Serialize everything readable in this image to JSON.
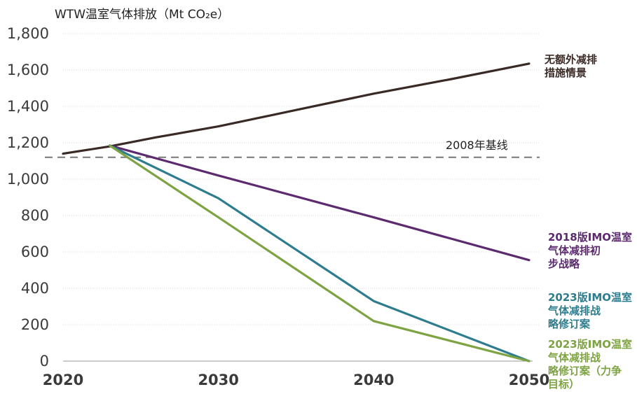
{
  "chart_data": {
    "type": "line",
    "ylabel": "WTW温室气体排放（Mt CO₂e）",
    "xlim": [
      2020,
      2050
    ],
    "ylim": [
      0,
      1800
    ],
    "x_ticks": [
      2020,
      2030,
      2040,
      2050
    ],
    "y_ticks": [
      0,
      200,
      400,
      600,
      800,
      1000,
      1200,
      1400,
      1600,
      1800
    ],
    "y_tick_labels": [
      "0",
      "200",
      "400",
      "600",
      "800",
      "1,000",
      "1,200",
      "1,400",
      "1,600",
      "1,800"
    ],
    "grid": true,
    "reference_line": {
      "value": 1120,
      "label": "2008年基线",
      "color": "#777777"
    },
    "series": [
      {
        "name": "无额外减排措施情景",
        "label_lines": [
          "无额外减排",
          "措施情景"
        ],
        "color": "#3a2a26",
        "x": [
          2020,
          2023,
          2026,
          2030,
          2035,
          2040,
          2045,
          2050
        ],
        "y": [
          1140,
          1180,
          1230,
          1290,
          1380,
          1470,
          1550,
          1635
        ]
      },
      {
        "name": "2018版IMO温室气体减排初步战略",
        "label_lines": [
          "2018版IMO温室",
          "气体减排初",
          "步战略"
        ],
        "color": "#5c2a6e",
        "x": [
          2023,
          2030,
          2040,
          2050
        ],
        "y": [
          1185,
          1020,
          790,
          555
        ]
      },
      {
        "name": "2023版IMO温室气体减排战略修订案",
        "label_lines": [
          "2023版IMO温室",
          "气体减排战",
          "略修订案"
        ],
        "color": "#2e7d8e",
        "x": [
          2023,
          2030,
          2040,
          2050
        ],
        "y": [
          1185,
          895,
          330,
          0
        ]
      },
      {
        "name": "2023版IMO温室气体减排战略修订案（力争目标）",
        "label_lines": [
          "2023版IMO温室",
          "气体减排战",
          "略修订案（力争",
          "目标）"
        ],
        "color": "#7ea343",
        "x": [
          2023,
          2030,
          2040,
          2050
        ],
        "y": [
          1185,
          790,
          220,
          0
        ]
      }
    ]
  }
}
